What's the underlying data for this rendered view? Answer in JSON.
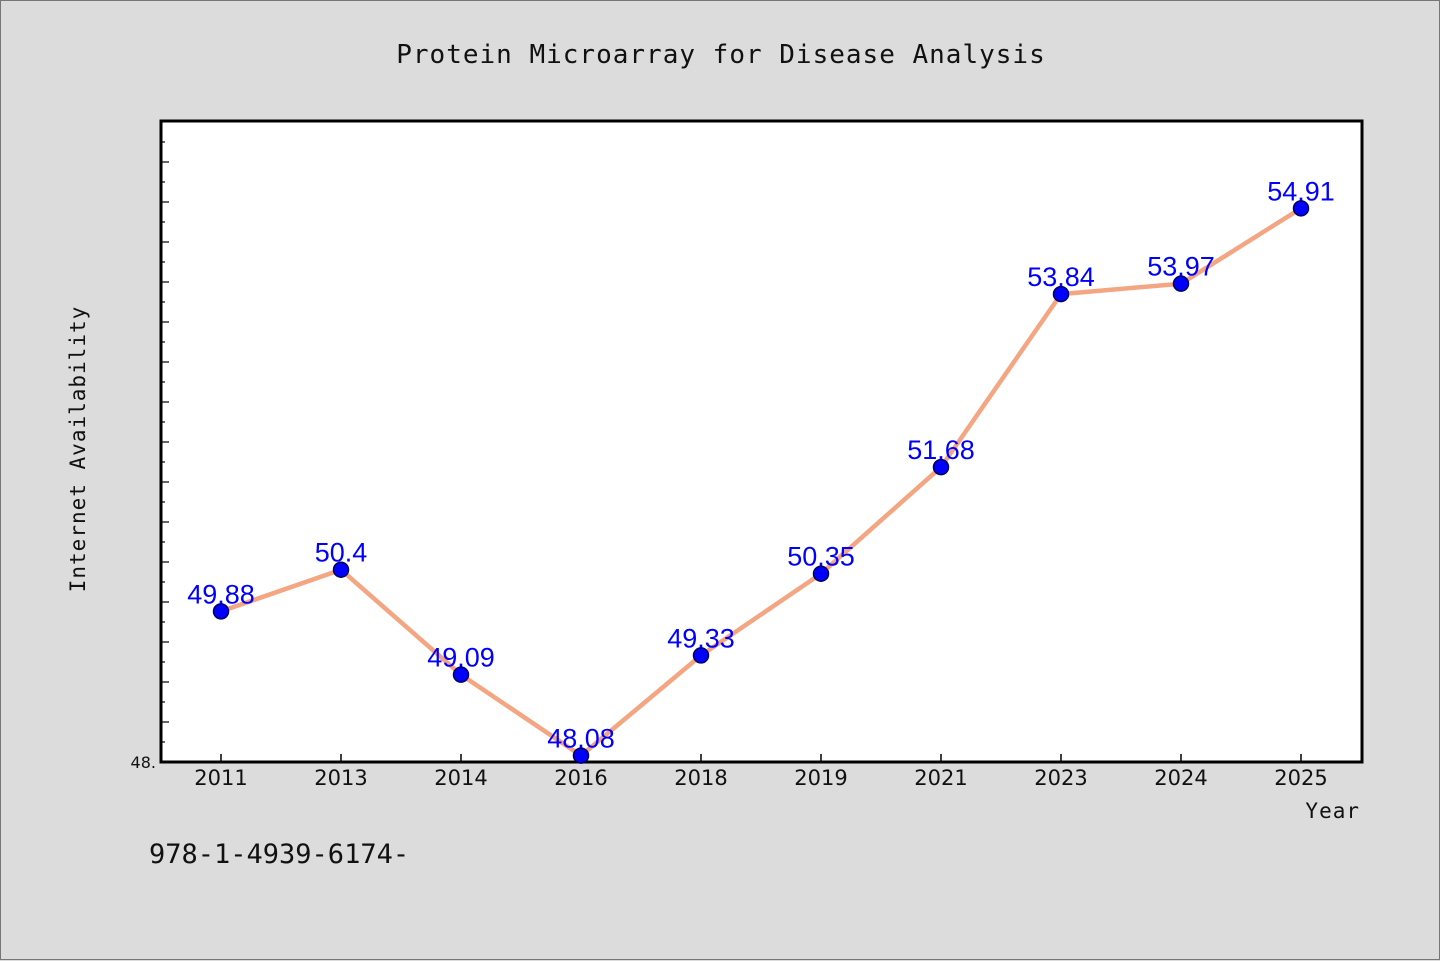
{
  "chart_data": {
    "type": "line",
    "title": "Protein Microarray for Disease Analysis",
    "xlabel": "Year",
    "ylabel": "Internet Availability",
    "categories": [
      "2011",
      "2013",
      "2014",
      "2016",
      "2018",
      "2019",
      "2021",
      "2023",
      "2024",
      "2025"
    ],
    "series": [
      {
        "values": [
          49.88,
          50.4,
          49.09,
          48.08,
          49.33,
          50.35,
          51.68,
          53.84,
          53.97,
          54.91
        ],
        "labels": [
          "49.88",
          "50.4",
          "49.09",
          "48.08",
          "49.33",
          "50.35",
          "51.68",
          "53.84",
          "53.97",
          "54.91"
        ]
      }
    ],
    "ylim": [
      48.0,
      56.0
    ],
    "y_tick_label": "48.",
    "grid": false,
    "legend": "none"
  },
  "footer": {
    "text": "978-1-4939-6174-"
  },
  "colors": {
    "line": "#f4a582",
    "marker": "#0000ff",
    "marker_edge": "#00005a",
    "data_label": "#0000ff",
    "plot_background": "#ffffff",
    "page_background": "#dcdcdc"
  }
}
